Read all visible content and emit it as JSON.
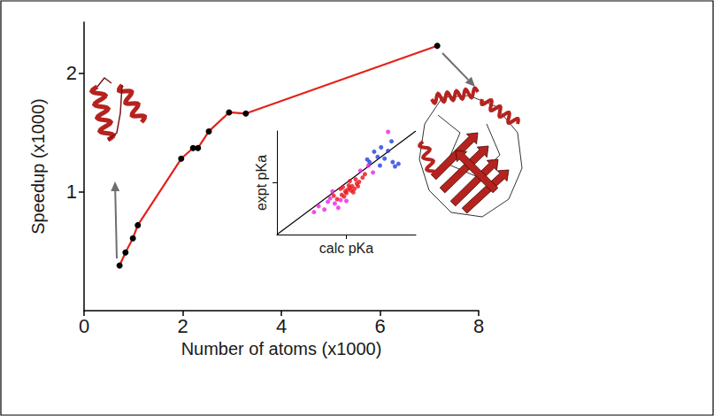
{
  "chart_data": [
    {
      "type": "line",
      "xlabel": "Number of atoms (x1000)",
      "ylabel": "Speedup (x1000)",
      "x": [
        0.72,
        0.84,
        0.99,
        1.09,
        1.97,
        2.21,
        2.31,
        2.53,
        2.94,
        3.28,
        7.16
      ],
      "series": [
        {
          "color": "#e3231b",
          "marker": "circle",
          "values": [
            0.38,
            0.49,
            0.61,
            0.72,
            1.28,
            1.37,
            1.37,
            1.51,
            1.67,
            1.66,
            2.23
          ]
        }
      ],
      "xlim": [
        0,
        8
      ],
      "xticks": [
        0,
        2,
        4,
        6,
        8
      ],
      "ylim": [
        0,
        2.43
      ],
      "yticks": [
        1,
        2
      ],
      "grid": false
    },
    {
      "type": "scatter",
      "xlabel": "calc pKa",
      "ylabel": "expt pKa",
      "xlim": [
        0,
        12
      ],
      "xticks": [
        6
      ],
      "ylim": [
        0,
        12
      ],
      "yticks": [
        6
      ],
      "tick_labels": false,
      "grid": false,
      "series": [
        {
          "color": "#f01ee8",
          "marker": "circle",
          "x": [
            3.2,
            3.6,
            4.1,
            4.4,
            4.6,
            5.0,
            5.3,
            4.8,
            7.2,
            7.9,
            9.6,
            8.3,
            5.5,
            6.0
          ],
          "values": [
            2.6,
            3.3,
            2.9,
            3.8,
            4.2,
            3.6,
            3.1,
            5.0,
            7.4,
            8.0,
            11.9,
            7.2,
            4.0,
            3.9
          ]
        },
        {
          "color": "#1f3fdc",
          "marker": "circle",
          "x": [
            8.0,
            8.4,
            8.7,
            9.0,
            9.3,
            9.6,
            10.0,
            10.2,
            9.9,
            8.9,
            10.5,
            7.8
          ],
          "values": [
            8.4,
            9.6,
            9.0,
            10.1,
            8.8,
            9.7,
            8.4,
            7.9,
            10.8,
            8.0,
            8.2,
            8.7
          ]
        },
        {
          "color": "#e8141a",
          "marker": "circle",
          "x": [
            5.2,
            5.6,
            5.9,
            6.1,
            6.3,
            6.0,
            6.5,
            6.7,
            6.9,
            7.1,
            6.4,
            5.8,
            6.2,
            6.8,
            7.4,
            5.5,
            6.6,
            7.0,
            4.9,
            6.3,
            7.6,
            5.7
          ],
          "values": [
            4.1,
            4.6,
            5.0,
            5.2,
            5.4,
            4.8,
            5.6,
            5.3,
            5.9,
            6.1,
            5.1,
            4.4,
            5.7,
            6.4,
            6.6,
            5.3,
            4.9,
            5.6,
            4.5,
            6.2,
            7.0,
            5.5
          ]
        },
        {
          "type": "line",
          "color": "#000000",
          "line_style": "solid",
          "x": [
            0,
            12
          ],
          "values": [
            0,
            12
          ]
        }
      ]
    }
  ]
}
